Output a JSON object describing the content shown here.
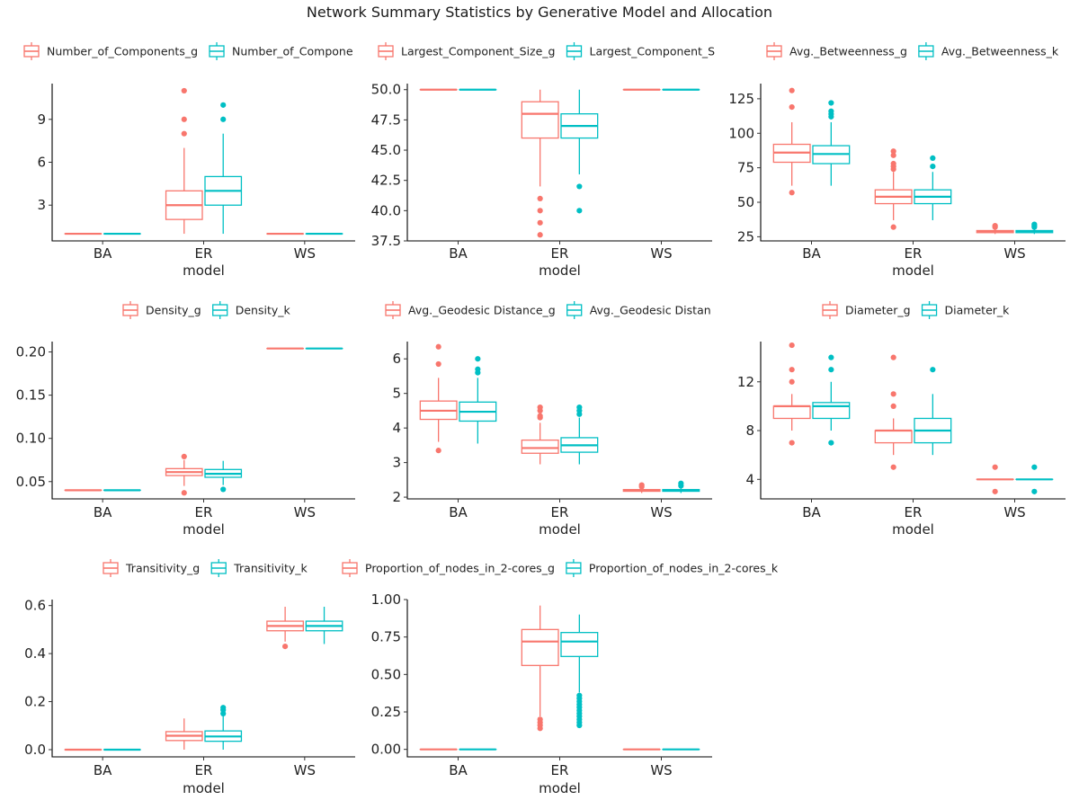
{
  "chart_data": {
    "title": "Network Summary Statistics by Generative Model and Allocation",
    "type": "boxplot",
    "categories": [
      "BA",
      "ER",
      "WS"
    ],
    "colors": {
      "g": "#F8766D",
      "k": "#00BFC4"
    },
    "panels": [
      {
        "legend": [
          "Number_of_Components_g",
          "Number_of_Compone"
        ],
        "xlabel": "model",
        "ylim": [
          0.5,
          11.5
        ],
        "yticks": [
          3,
          6,
          9
        ],
        "ytick_labels": [
          "3",
          "6",
          "9"
        ],
        "series": [
          {
            "name": "Number_of_Components_g",
            "boxes": [
              {
                "category": "BA",
                "min": 1,
                "q1": 1,
                "median": 1,
                "q3": 1,
                "max": 1,
                "outliers": []
              },
              {
                "category": "ER",
                "min": 1,
                "q1": 2,
                "median": 3,
                "q3": 4,
                "max": 7,
                "outliers": [
                  8,
                  9,
                  11
                ]
              },
              {
                "category": "WS",
                "min": 1,
                "q1": 1,
                "median": 1,
                "q3": 1,
                "max": 1,
                "outliers": []
              }
            ]
          },
          {
            "name": "Number_of_Components_k",
            "boxes": [
              {
                "category": "BA",
                "min": 1,
                "q1": 1,
                "median": 1,
                "q3": 1,
                "max": 1,
                "outliers": []
              },
              {
                "category": "ER",
                "min": 1,
                "q1": 3,
                "median": 4,
                "q3": 5,
                "max": 8,
                "outliers": [
                  9,
                  10
                ]
              },
              {
                "category": "WS",
                "min": 1,
                "q1": 1,
                "median": 1,
                "q3": 1,
                "max": 1,
                "outliers": []
              }
            ]
          }
        ]
      },
      {
        "legend": [
          "Largest_Component_Size_g",
          "Largest_Component_S"
        ],
        "xlabel": "model",
        "ylim": [
          37.5,
          50.5
        ],
        "yticks": [
          37.5,
          40,
          42.5,
          45,
          47.5,
          50
        ],
        "ytick_labels": [
          "37.5",
          "40.0",
          "42.5",
          "45.0",
          "47.5",
          "50.0"
        ],
        "series": [
          {
            "name": "Largest_Component_Size_g",
            "boxes": [
              {
                "category": "BA",
                "min": 50,
                "q1": 50,
                "median": 50,
                "q3": 50,
                "max": 50,
                "outliers": []
              },
              {
                "category": "ER",
                "min": 42,
                "q1": 46,
                "median": 48,
                "q3": 49,
                "max": 50,
                "outliers": [
                  41,
                  40,
                  39,
                  38
                ]
              },
              {
                "category": "WS",
                "min": 50,
                "q1": 50,
                "median": 50,
                "q3": 50,
                "max": 50,
                "outliers": []
              }
            ]
          },
          {
            "name": "Largest_Component_Size_k",
            "boxes": [
              {
                "category": "BA",
                "min": 50,
                "q1": 50,
                "median": 50,
                "q3": 50,
                "max": 50,
                "outliers": []
              },
              {
                "category": "ER",
                "min": 43,
                "q1": 46,
                "median": 47,
                "q3": 48,
                "max": 50,
                "outliers": [
                  42,
                  40
                ]
              },
              {
                "category": "WS",
                "min": 50,
                "q1": 50,
                "median": 50,
                "q3": 50,
                "max": 50,
                "outliers": []
              }
            ]
          }
        ]
      },
      {
        "legend": [
          "Avg._Betweenness_g",
          "Avg._Betweenness_k"
        ],
        "xlabel": "model",
        "ylim": [
          22,
          136
        ],
        "yticks": [
          25,
          50,
          75,
          100,
          125
        ],
        "ytick_labels": [
          "25",
          "50",
          "75",
          "100",
          "125"
        ],
        "series": [
          {
            "name": "Avg._Betweenness_g",
            "boxes": [
              {
                "category": "BA",
                "min": 62,
                "q1": 79,
                "median": 86,
                "q3": 92,
                "max": 108,
                "outliers": [
                  57,
                  119,
                  131
                ]
              },
              {
                "category": "ER",
                "min": 37,
                "q1": 49,
                "median": 54,
                "q3": 59,
                "max": 72,
                "outliers": [
                  32,
                  74,
                  76,
                  78,
                  84,
                  87
                ]
              },
              {
                "category": "WS",
                "min": 27,
                "q1": 28,
                "median": 29,
                "q3": 29.5,
                "max": 31,
                "outliers": [
                  32,
                  33
                ]
              }
            ]
          },
          {
            "name": "Avg._Betweenness_k",
            "boxes": [
              {
                "category": "BA",
                "min": 62,
                "q1": 78,
                "median": 85,
                "q3": 91,
                "max": 108,
                "outliers": [
                  112,
                  114,
                  116,
                  122
                ]
              },
              {
                "category": "ER",
                "min": 37,
                "q1": 49,
                "median": 54,
                "q3": 59,
                "max": 72,
                "outliers": [
                  76,
                  82
                ]
              },
              {
                "category": "WS",
                "min": 27,
                "q1": 28,
                "median": 29,
                "q3": 29.5,
                "max": 31,
                "outliers": [
                  32,
                  33,
                  34
                ]
              }
            ]
          }
        ]
      },
      {
        "legend": [
          "Density_g",
          "Density_k"
        ],
        "xlabel": "model",
        "ylim": [
          0.03,
          0.212
        ],
        "yticks": [
          0.05,
          0.1,
          0.15,
          0.2
        ],
        "ytick_labels": [
          "0.05",
          "0.10",
          "0.15",
          "0.20"
        ],
        "series": [
          {
            "name": "Density_g",
            "boxes": [
              {
                "category": "BA",
                "min": 0.04,
                "q1": 0.04,
                "median": 0.04,
                "q3": 0.04,
                "max": 0.04,
                "outliers": []
              },
              {
                "category": "ER",
                "min": 0.045,
                "q1": 0.057,
                "median": 0.061,
                "q3": 0.065,
                "max": 0.075,
                "outliers": [
                  0.037,
                  0.079
                ]
              },
              {
                "category": "WS",
                "min": 0.204,
                "q1": 0.204,
                "median": 0.204,
                "q3": 0.204,
                "max": 0.204,
                "outliers": []
              }
            ]
          },
          {
            "name": "Density_k",
            "boxes": [
              {
                "category": "BA",
                "min": 0.04,
                "q1": 0.04,
                "median": 0.04,
                "q3": 0.04,
                "max": 0.04,
                "outliers": []
              },
              {
                "category": "ER",
                "min": 0.046,
                "q1": 0.055,
                "median": 0.059,
                "q3": 0.064,
                "max": 0.074,
                "outliers": [
                  0.041
                ]
              },
              {
                "category": "WS",
                "min": 0.204,
                "q1": 0.204,
                "median": 0.204,
                "q3": 0.204,
                "max": 0.204,
                "outliers": []
              }
            ]
          }
        ]
      },
      {
        "legend": [
          "Avg._Geodesic Distance_g",
          "Avg._Geodesic Distan"
        ],
        "xlabel": "model",
        "ylim": [
          1.95,
          6.5
        ],
        "yticks": [
          2,
          3,
          4,
          5,
          6
        ],
        "ytick_labels": [
          "2",
          "3",
          "4",
          "5",
          "6"
        ],
        "series": [
          {
            "name": "Avg._Geodesic Distance_g",
            "boxes": [
              {
                "category": "BA",
                "min": 3.6,
                "q1": 4.25,
                "median": 4.5,
                "q3": 4.78,
                "max": 5.45,
                "outliers": [
                  3.35,
                  5.85,
                  6.35
                ]
              },
              {
                "category": "ER",
                "min": 2.95,
                "q1": 3.27,
                "median": 3.42,
                "q3": 3.65,
                "max": 4.15,
                "outliers": [
                  4.3,
                  4.35,
                  4.5,
                  4.6
                ]
              },
              {
                "category": "WS",
                "min": 2.12,
                "q1": 2.17,
                "median": 2.2,
                "q3": 2.22,
                "max": 2.27,
                "outliers": [
                  2.3,
                  2.35
                ]
              }
            ]
          },
          {
            "name": "Avg._Geodesic Distance_k",
            "boxes": [
              {
                "category": "BA",
                "min": 3.55,
                "q1": 4.2,
                "median": 4.47,
                "q3": 4.75,
                "max": 5.45,
                "outliers": [
                  5.6,
                  5.7,
                  6.0
                ]
              },
              {
                "category": "ER",
                "min": 2.95,
                "q1": 3.3,
                "median": 3.5,
                "q3": 3.72,
                "max": 4.3,
                "outliers": [
                  4.4,
                  4.5,
                  4.6
                ]
              },
              {
                "category": "WS",
                "min": 2.12,
                "q1": 2.17,
                "median": 2.2,
                "q3": 2.22,
                "max": 2.27,
                "outliers": [
                  2.33,
                  2.4
                ]
              }
            ]
          }
        ]
      },
      {
        "legend": [
          "Diameter_g",
          "Diameter_k"
        ],
        "xlabel": "model",
        "ylim": [
          2.4,
          15.3
        ],
        "yticks": [
          4,
          8,
          12
        ],
        "ytick_labels": [
          "4",
          "8",
          "12"
        ],
        "series": [
          {
            "name": "Diameter_g",
            "boxes": [
              {
                "category": "BA",
                "min": 8,
                "q1": 9,
                "median": 10,
                "q3": 10,
                "max": 11,
                "outliers": [
                  7,
                  12,
                  13,
                  15
                ]
              },
              {
                "category": "ER",
                "min": 6,
                "q1": 7,
                "median": 8,
                "q3": 8,
                "max": 9,
                "outliers": [
                  5,
                  10,
                  11,
                  14
                ]
              },
              {
                "category": "WS",
                "min": 4,
                "q1": 4,
                "median": 4,
                "q3": 4,
                "max": 4,
                "outliers": [
                  3,
                  5
                ]
              }
            ]
          },
          {
            "name": "Diameter_k",
            "boxes": [
              {
                "category": "BA",
                "min": 8,
                "q1": 9,
                "median": 10,
                "q3": 10.3,
                "max": 12,
                "outliers": [
                  7,
                  13,
                  14
                ]
              },
              {
                "category": "ER",
                "min": 6,
                "q1": 7,
                "median": 8,
                "q3": 9,
                "max": 11,
                "outliers": [
                  13
                ]
              },
              {
                "category": "WS",
                "min": 4,
                "q1": 4,
                "median": 4,
                "q3": 4,
                "max": 4,
                "outliers": [
                  3,
                  5
                ]
              }
            ]
          }
        ]
      },
      {
        "legend": [
          "Transitivity_g",
          "Transitivity_k"
        ],
        "xlabel": "model",
        "ylim": [
          -0.03,
          0.625
        ],
        "yticks": [
          0.0,
          0.2,
          0.4,
          0.6
        ],
        "ytick_labels": [
          "0.0",
          "0.2",
          "0.4",
          "0.6"
        ],
        "series": [
          {
            "name": "Transitivity_g",
            "boxes": [
              {
                "category": "BA",
                "min": 0,
                "q1": 0,
                "median": 0,
                "q3": 0,
                "max": 0,
                "outliers": []
              },
              {
                "category": "ER",
                "min": 0,
                "q1": 0.038,
                "median": 0.058,
                "q3": 0.075,
                "max": 0.13,
                "outliers": []
              },
              {
                "category": "WS",
                "min": 0.45,
                "q1": 0.495,
                "median": 0.515,
                "q3": 0.535,
                "max": 0.595,
                "outliers": [
                  0.43
                ]
              }
            ]
          },
          {
            "name": "Transitivity_k",
            "boxes": [
              {
                "category": "BA",
                "min": 0,
                "q1": 0,
                "median": 0,
                "q3": 0,
                "max": 0,
                "outliers": []
              },
              {
                "category": "ER",
                "min": 0,
                "q1": 0.035,
                "median": 0.055,
                "q3": 0.078,
                "max": 0.14,
                "outliers": [
                  0.15,
                  0.165,
                  0.175
                ]
              },
              {
                "category": "WS",
                "min": 0.44,
                "q1": 0.495,
                "median": 0.515,
                "q3": 0.535,
                "max": 0.595,
                "outliers": []
              }
            ]
          }
        ]
      },
      {
        "legend": [
          "Proportion_of_nodes_in_2-cores_g",
          "Proportion_of_nodes_in_2-cores_k"
        ],
        "xlabel": "model",
        "ylim": [
          -0.05,
          1.0
        ],
        "yticks": [
          0.0,
          0.25,
          0.5,
          0.75,
          1.0
        ],
        "ytick_labels": [
          "0.00",
          "0.25",
          "0.50",
          "0.75",
          "1.00"
        ],
        "series": [
          {
            "name": "Proportion_of_nodes_in_2-cores_g",
            "boxes": [
              {
                "category": "BA",
                "min": 0,
                "q1": 0,
                "median": 0,
                "q3": 0,
                "max": 0,
                "outliers": []
              },
              {
                "category": "ER",
                "min": 0.22,
                "q1": 0.56,
                "median": 0.72,
                "q3": 0.8,
                "max": 0.96,
                "outliers": [
                  0.14,
                  0.16,
                  0.18,
                  0.2
                ]
              },
              {
                "category": "WS",
                "min": 0,
                "q1": 0,
                "median": 0,
                "q3": 0,
                "max": 0,
                "outliers": []
              }
            ]
          },
          {
            "name": "Proportion_of_nodes_in_2-cores_k",
            "boxes": [
              {
                "category": "BA",
                "min": 0,
                "q1": 0,
                "median": 0,
                "q3": 0,
                "max": 0,
                "outliers": []
              },
              {
                "category": "ER",
                "min": 0.38,
                "q1": 0.62,
                "median": 0.72,
                "q3": 0.78,
                "max": 0.9,
                "outliers": [
                  0.16,
                  0.18,
                  0.2,
                  0.22,
                  0.24,
                  0.26,
                  0.28,
                  0.3,
                  0.32,
                  0.34,
                  0.36
                ]
              },
              {
                "category": "WS",
                "min": 0,
                "q1": 0,
                "median": 0,
                "q3": 0,
                "max": 0,
                "outliers": []
              }
            ]
          }
        ]
      }
    ]
  }
}
